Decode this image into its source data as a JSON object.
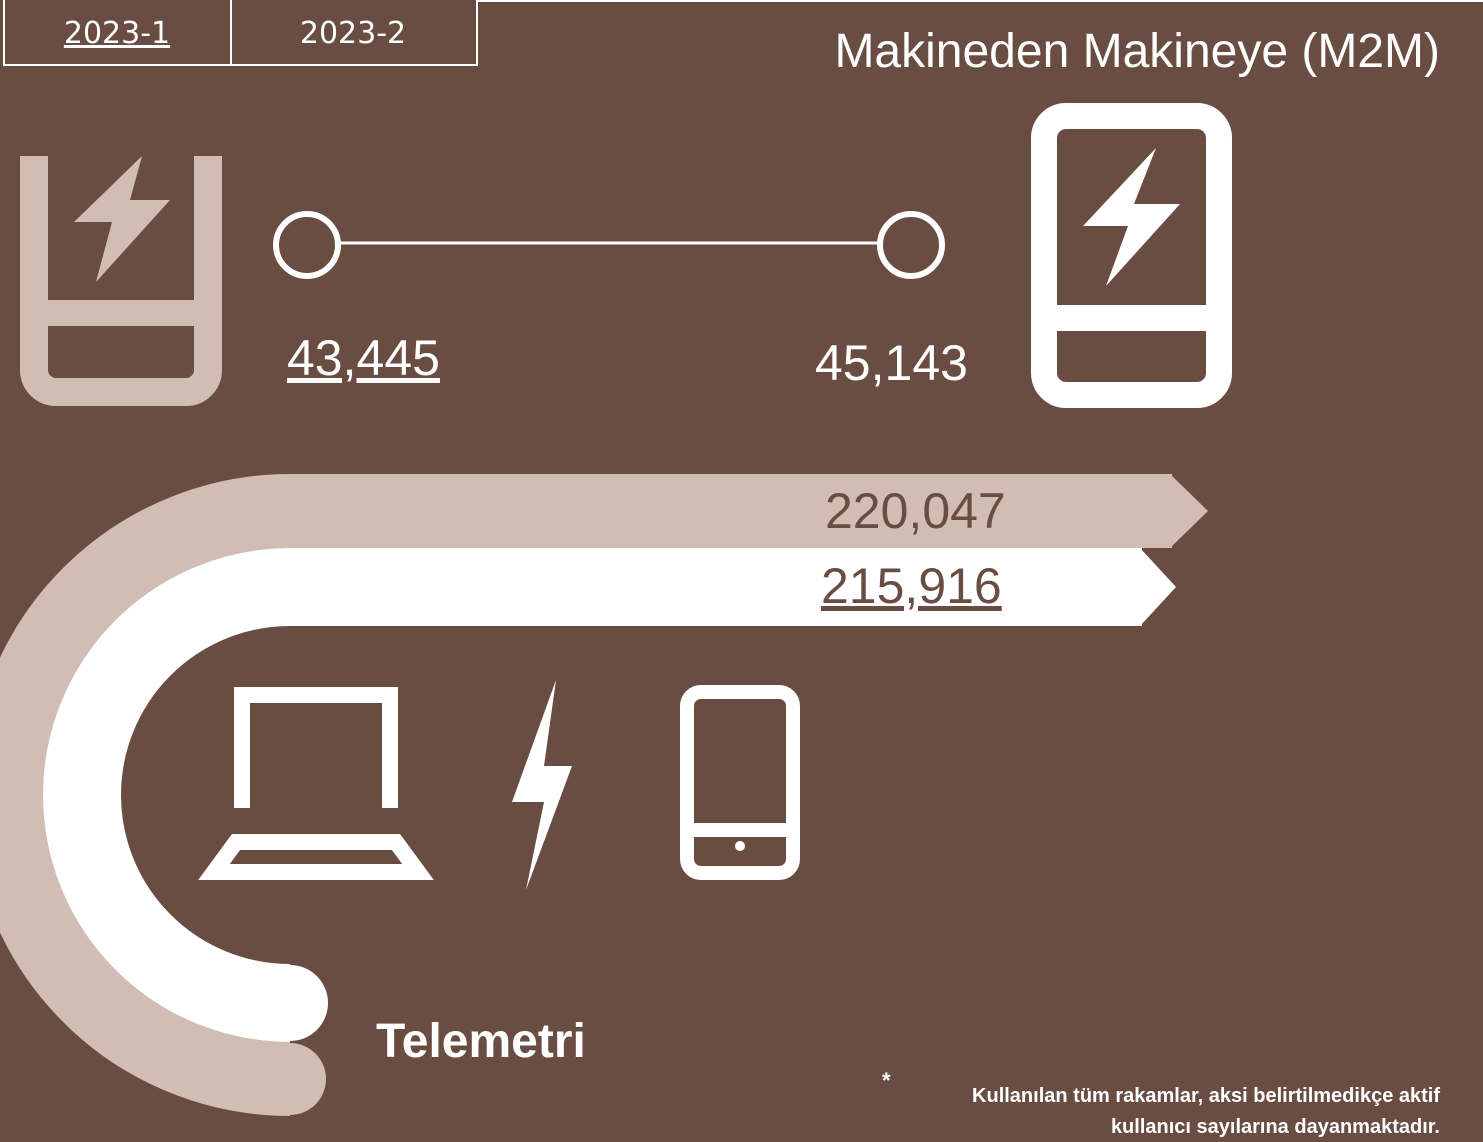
{
  "tabs": [
    "2023-1",
    "2023-2"
  ],
  "title": "Makineden Makineye (M2M)",
  "m2m": {
    "values": [
      "43,445",
      "45,143"
    ]
  },
  "telemetri": {
    "label": "Telemetri",
    "values": [
      "220,047",
      "215,916"
    ]
  },
  "footnote": {
    "mark": "*",
    "lines": [
      "Kullanılan tüm rakamlar, aksi belirtilmedikçe aktif",
      "kullanıcı sayılarına dayanmaktadır."
    ]
  }
}
